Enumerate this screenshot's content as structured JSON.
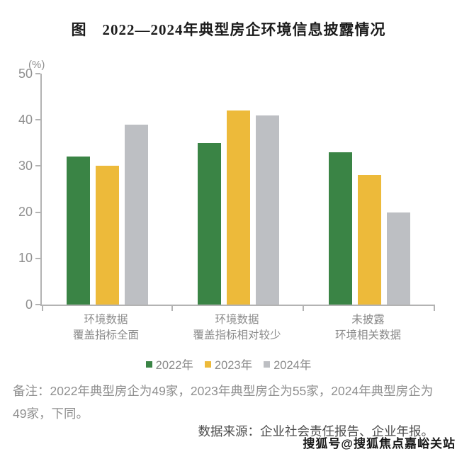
{
  "title": "图　2022—2024年典型房企环境信息披露情况",
  "unit_label": "(%)",
  "chart_data": {
    "type": "bar",
    "categories": [
      [
        "环境数据",
        "覆盖指标全面"
      ],
      [
        "环境数据",
        "覆盖指标相对较少"
      ],
      [
        "未披露",
        "环境相关数据"
      ]
    ],
    "series": [
      {
        "name": "2022年",
        "color": "#3A8445",
        "values": [
          32,
          35,
          33
        ]
      },
      {
        "name": "2023年",
        "color": "#EDBA3A",
        "values": [
          30,
          42,
          28
        ]
      },
      {
        "name": "2024年",
        "color": "#BDBFC3",
        "values": [
          39,
          41,
          20
        ]
      }
    ],
    "ylabel": "(%)",
    "ylim": [
      0,
      50
    ],
    "yticks": [
      0,
      10,
      20,
      30,
      40,
      50
    ],
    "grid": false,
    "legend_position": "bottom"
  },
  "note": "备注：2022年典型房企为49家，2023年典型房企为55家，2024年典型房企为49家，下同。",
  "source": "数据来源：企业社会责任报告、企业年报。",
  "watermark": "搜狐号@搜狐焦点嘉峪关站"
}
